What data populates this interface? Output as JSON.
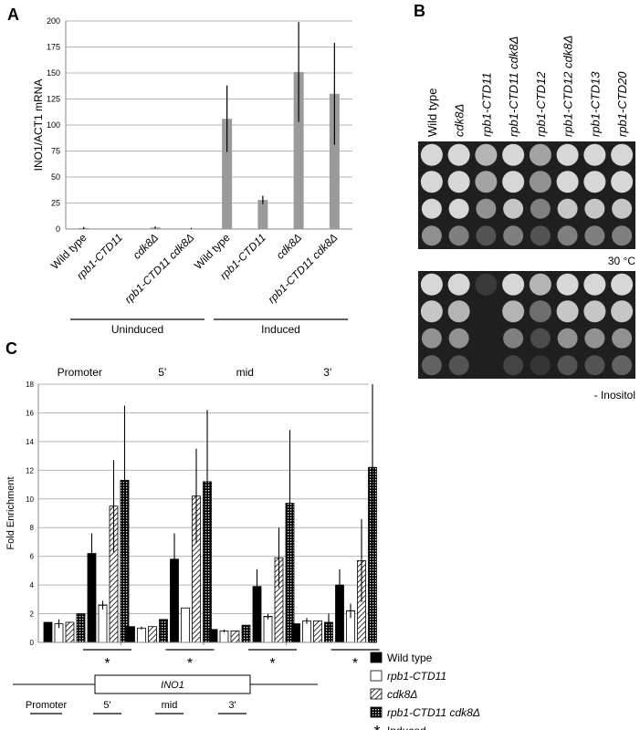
{
  "panels": {
    "A": "A",
    "B": "B",
    "C": "C"
  },
  "chart_data": [
    {
      "panel": "A",
      "type": "bar",
      "ylabel": "INO1/ACT1 mRNA",
      "ylim": [
        0,
        200
      ],
      "yticks": [
        "0",
        "25",
        "50",
        "75",
        "100",
        "125",
        "150",
        "175",
        "200"
      ],
      "grid": true,
      "categories": [
        "Wild type",
        "rpb1-CTD11",
        "cdk8Δ",
        "rpb1-CTD11 cdk8Δ",
        "Wild type",
        "rpb1-CTD11",
        "cdk8Δ",
        "rpb1-CTD11 cdk8Δ"
      ],
      "italic": [
        false,
        true,
        true,
        true,
        false,
        true,
        true,
        true
      ],
      "values": [
        1,
        0,
        1.5,
        0.5,
        106,
        28,
        151,
        130
      ],
      "errors": [
        1,
        0,
        1,
        0.5,
        32,
        4,
        48,
        49
      ],
      "groups": [
        {
          "label": "Uninduced",
          "from": 0,
          "to": 3
        },
        {
          "label": "Induced",
          "from": 4,
          "to": 7
        }
      ]
    },
    {
      "panel": "C",
      "type": "bar",
      "ylabel": "Fold Enrichment",
      "ylim": [
        0,
        18
      ],
      "yticks": [
        "0",
        "2",
        "4",
        "6",
        "8",
        "10",
        "12",
        "14",
        "16",
        "18"
      ],
      "grid": true,
      "categories": [
        "Promoter",
        "5'",
        "mid",
        "3'"
      ],
      "series": [
        {
          "name": "Wild type",
          "values": [
            1.4,
            1.1,
            0.9,
            1.3
          ],
          "errors": [
            0,
            0,
            0,
            0
          ]
        },
        {
          "name": "rpb1-CTD11",
          "values": [
            1.3,
            1.0,
            0.8,
            1.5
          ],
          "errors": [
            0.3,
            0.1,
            0.1,
            0.2
          ]
        },
        {
          "name": "cdk8Δ",
          "values": [
            1.4,
            1.1,
            0.8,
            1.5
          ],
          "errors": [
            0,
            0,
            0,
            0
          ]
        },
        {
          "name": "rpb1-CTD11 cdk8Δ",
          "values": [
            2.0,
            1.6,
            1.2,
            1.4
          ],
          "errors": [
            0,
            0,
            0,
            0.6
          ]
        },
        {
          "name": "Wild type",
          "induced": true,
          "values": [
            6.2,
            5.8,
            3.9,
            4.0
          ],
          "errors": [
            1.4,
            1.8,
            1.2,
            1.1
          ]
        },
        {
          "name": "rpb1-CTD11",
          "induced": true,
          "values": [
            2.6,
            2.4,
            1.8,
            2.2
          ],
          "errors": [
            0.3,
            0.0,
            0.2,
            0.5
          ]
        },
        {
          "name": "cdk8Δ",
          "induced": true,
          "values": [
            9.5,
            10.2,
            5.9,
            5.7
          ],
          "errors": [
            3.2,
            3.3,
            2.1,
            2.9
          ]
        },
        {
          "name": "rpb1-CTD11 cdk8Δ",
          "induced": true,
          "values": [
            11.3,
            11.2,
            9.7,
            12.2
          ],
          "errors": [
            5.2,
            5.0,
            5.1,
            5.8
          ]
        }
      ],
      "star": "*"
    }
  ],
  "panelB": {
    "strains": [
      "Wild type",
      "cdk8Δ",
      "rpb1-CTD11",
      "rpb1-CTD11 cdk8Δ",
      "rpb1-CTD12",
      "rpb1-CTD12 cdk8Δ",
      "rpb1-CTD13",
      "rpb1-CTD20"
    ],
    "italic": [
      false,
      true,
      true,
      true,
      true,
      true,
      true,
      true
    ],
    "plates": [
      {
        "label": "30 °C",
        "growth": [
          [
            1,
            1,
            0.8,
            1,
            0.7,
            1,
            1,
            1
          ],
          [
            1,
            1,
            0.7,
            1,
            0.6,
            1,
            1,
            1
          ],
          [
            1,
            1,
            0.6,
            0.9,
            0.5,
            0.9,
            0.9,
            0.9
          ],
          [
            0.7,
            0.6,
            0.3,
            0.6,
            0.3,
            0.6,
            0.6,
            0.6
          ]
        ]
      },
      {
        "label": "- Inositol",
        "growth": [
          [
            1,
            1,
            0.1,
            1,
            0.8,
            1,
            1,
            1
          ],
          [
            0.9,
            0.8,
            0,
            0.8,
            0.4,
            0.9,
            0.9,
            0.9
          ],
          [
            0.6,
            0.6,
            0,
            0.5,
            0.2,
            0.6,
            0.6,
            0.6
          ],
          [
            0.4,
            0.3,
            0,
            0.2,
            0.1,
            0.3,
            0.3,
            0.4
          ]
        ]
      }
    ]
  },
  "legend": [
    {
      "label": "Wild type",
      "pattern": "solid"
    },
    {
      "label": "rpb1-CTD11",
      "pattern": "open"
    },
    {
      "label": "cdk8Δ",
      "pattern": "hatch"
    },
    {
      "label": "rpb1-CTD11 cdk8Δ",
      "pattern": "dots"
    },
    {
      "label": "Induced",
      "pattern": "star"
    }
  ],
  "gene_diagram": {
    "gene": "INO1",
    "regions": [
      "Promoter",
      "5'",
      "mid",
      "3'"
    ]
  }
}
